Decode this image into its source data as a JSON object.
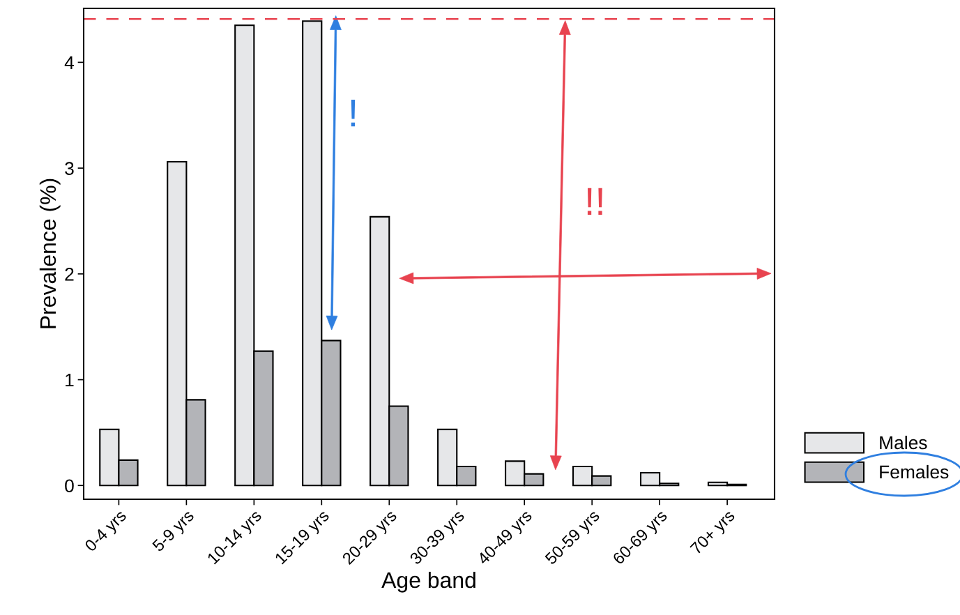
{
  "chart_data": {
    "type": "bar",
    "xlabel": "Age band",
    "ylabel": "Prevalence (%)",
    "categories": [
      "0-4 yrs",
      "5-9 yrs",
      "10-14 yrs",
      "15-19 yrs",
      "20-29 yrs",
      "30-39 yrs",
      "40-49 yrs",
      "50-59 yrs",
      "60-69 yrs",
      "70+ yrs"
    ],
    "series": [
      {
        "name": "Males",
        "color": "#e6e7e9",
        "values": [
          0.53,
          3.06,
          4.35,
          4.39,
          2.54,
          0.53,
          0.23,
          0.18,
          0.12,
          0.03
        ]
      },
      {
        "name": "Females",
        "color": "#b3b4b8",
        "values": [
          0.24,
          0.81,
          1.27,
          1.37,
          0.75,
          0.18,
          0.11,
          0.09,
          0.02,
          0.01
        ]
      }
    ],
    "ylim": [
      -0.13,
      4.51
    ],
    "yticks": [
      0,
      1,
      2,
      3,
      4
    ],
    "ref_lines": [
      {
        "axis": "y",
        "value": 4.41,
        "label": null,
        "color": "#e8434f",
        "line_style": "dashed"
      }
    ],
    "annotations": [
      "!",
      "!!"
    ],
    "grid": false,
    "legend": "right"
  }
}
